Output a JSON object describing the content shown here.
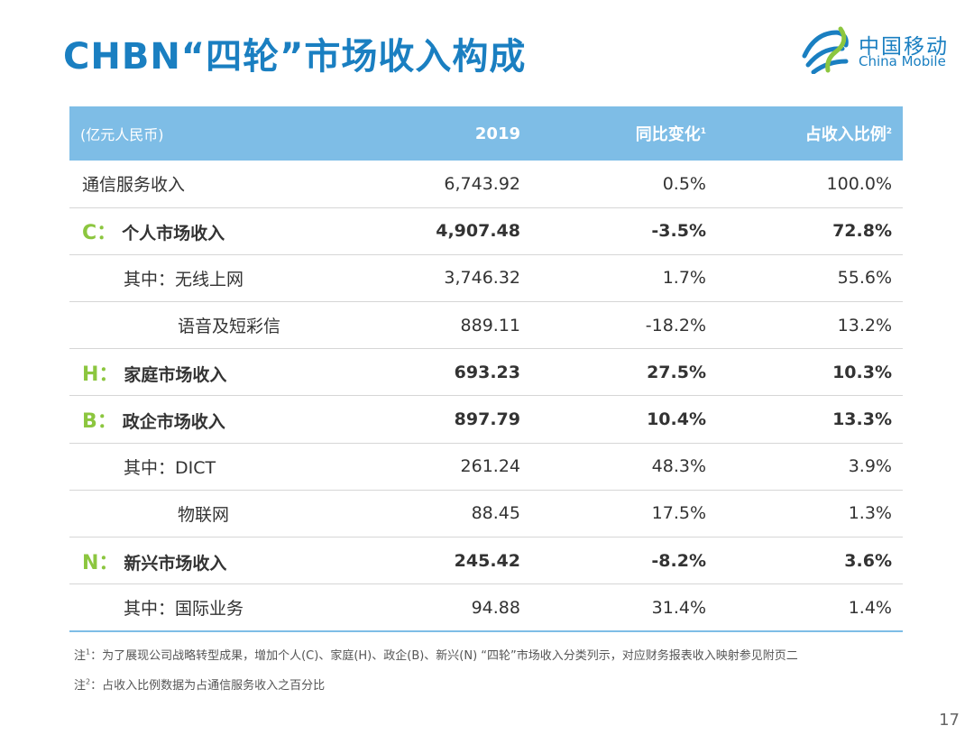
{
  "title": "CHBN“四轮”市场收入构成",
  "logo": {
    "cn": "中国移动",
    "en": "China Mobile"
  },
  "colors": {
    "title": "#1a7fc1",
    "header_bg": "#7ebde6",
    "segment_letter": "#8cc63f"
  },
  "table": {
    "header": {
      "unit": "(亿元人民币)",
      "year": "2019",
      "yoy": "同比变化",
      "yoy_sup": "1",
      "share": "占收入比例",
      "share_sup": "2"
    },
    "rows": [
      {
        "label": "通信服务收入",
        "value": "6,743.92",
        "yoy": "0.5%",
        "share": "100.0%"
      },
      {
        "seg": "C：",
        "label": "个人市场收入",
        "value": "4,907.48",
        "yoy": "-3.5%",
        "share": "72.8%"
      },
      {
        "label": "其中：无线上网",
        "value": "3,746.32",
        "yoy": "1.7%",
        "share": "55.6%"
      },
      {
        "label": "语音及短彩信",
        "value": "889.11",
        "yoy": "-18.2%",
        "share": "13.2%"
      },
      {
        "seg": "H：",
        "label": "家庭市场收入",
        "value": "693.23",
        "yoy": "27.5%",
        "share": "10.3%"
      },
      {
        "seg": "B：",
        "label": "政企市场收入",
        "value": "897.79",
        "yoy": "10.4%",
        "share": "13.3%"
      },
      {
        "label": "其中：DICT",
        "value": "261.24",
        "yoy": "48.3%",
        "share": "3.9%"
      },
      {
        "label": "物联网",
        "value": "88.45",
        "yoy": "17.5%",
        "share": "1.3%"
      },
      {
        "seg": "N：",
        "label": "新兴市场收入",
        "value": "245.42",
        "yoy": "-8.2%",
        "share": "3.6%"
      },
      {
        "label": "其中：国际业务",
        "value": "94.88",
        "yoy": "31.4%",
        "share": "1.4%"
      }
    ]
  },
  "notes": {
    "n1_prefix": "注",
    "n1_sup": "1",
    "n1_text": "：为了展现公司战略转型成果，增加个人(C)、家庭(H)、政企(B)、新兴(N) “四轮”市场收入分类列示，对应财务报表收入映射参见附页二",
    "n2_prefix": "注",
    "n2_sup": "2",
    "n2_text": "：占收入比例数据为占通信服务收入之百分比"
  },
  "page_number": "17"
}
